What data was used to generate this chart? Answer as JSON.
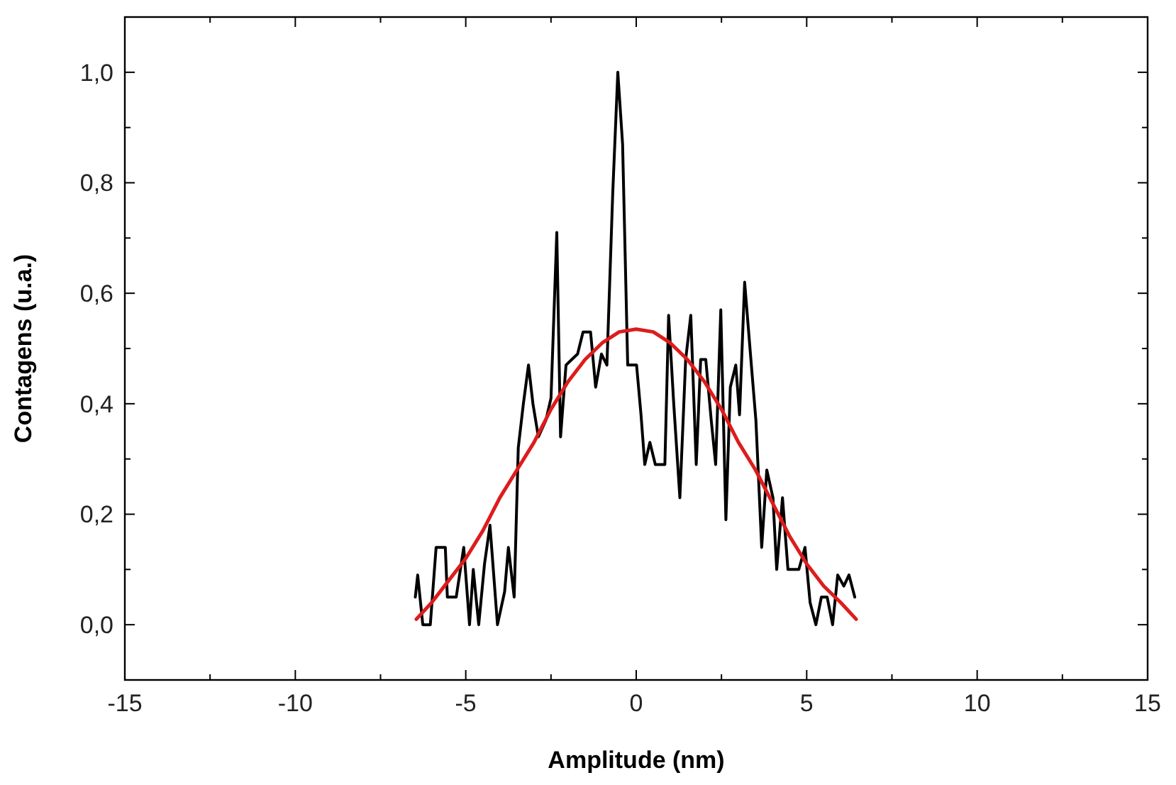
{
  "chart_data": {
    "type": "line",
    "xlabel": "Amplitude (nm)",
    "ylabel": "Contagens (u.a.)",
    "xlim": [
      -15,
      15
    ],
    "ylim": [
      -0.1,
      1.1
    ],
    "xticks": [
      -15,
      {
        "value": -12.5,
        "label": null
      },
      -10,
      {
        "value": -7.5,
        "label": null
      },
      -5,
      {
        "value": -2.5,
        "label": null
      },
      0,
      {
        "value": 2.5,
        "label": null
      },
      5,
      {
        "value": 7.5,
        "label": null
      },
      10,
      {
        "value": 12.5,
        "label": null
      },
      15
    ],
    "yticks": [
      {
        "value": -0.1,
        "label": null
      },
      {
        "value": 0,
        "label": "0,0"
      },
      {
        "value": 0.1,
        "label": null
      },
      {
        "value": 0.2,
        "label": "0,2"
      },
      {
        "value": 0.3,
        "label": null
      },
      {
        "value": 0.4,
        "label": "0,4"
      },
      {
        "value": 0.5,
        "label": null
      },
      {
        "value": 0.6,
        "label": "0,6"
      },
      {
        "value": 0.7,
        "label": null
      },
      {
        "value": 0.8,
        "label": "0,8"
      },
      {
        "value": 0.9,
        "label": null
      },
      {
        "value": 1,
        "label": "1,0"
      },
      {
        "value": 1.1,
        "label": null
      }
    ],
    "grid": false,
    "line_style": "solid",
    "series": [
      {
        "color": "#000000",
        "x": [
          -6.48,
          -6.41,
          -6.26,
          -6.04,
          -5.87,
          -5.6,
          -5.54,
          -5.28,
          -5.06,
          -4.89,
          -4.78,
          -4.62,
          -4.45,
          -4.29,
          -4.07,
          -3.86,
          -3.75,
          -3.58,
          -3.46,
          -3.31,
          -3.16,
          -3.03,
          -2.87,
          -2.65,
          -2.5,
          -2.33,
          -2.22,
          -2.06,
          -1.89,
          -1.72,
          -1.56,
          -1.34,
          -1.19,
          -1.02,
          -0.86,
          -0.69,
          -0.54,
          -0.4,
          -0.25,
          0.01,
          0.14,
          0.25,
          0.4,
          0.56,
          0.84,
          0.95,
          1.1,
          1.28,
          1.45,
          1.6,
          1.76,
          1.89,
          2.04,
          2.2,
          2.33,
          2.48,
          2.63,
          2.76,
          2.92,
          3.03,
          3.18,
          3.35,
          3.51,
          3.68,
          3.83,
          4.01,
          4.12,
          4.29,
          4.45,
          4.62,
          4.77,
          4.95,
          5.1,
          5.27,
          5.43,
          5.6,
          5.76,
          5.91,
          6.09,
          6.24,
          6.41
        ],
        "values": [
          0.05,
          0.09,
          0,
          0,
          0.14,
          0.14,
          0.05,
          0.05,
          0.14,
          0,
          0.1,
          0,
          0.11,
          0.18,
          0,
          0.06,
          0.14,
          0.05,
          0.32,
          0.4,
          0.47,
          0.4,
          0.34,
          0.37,
          0.41,
          0.71,
          0.34,
          0.47,
          0.48,
          0.49,
          0.53,
          0.53,
          0.43,
          0.49,
          0.47,
          0.78,
          1,
          0.87,
          0.47,
          0.47,
          0.38,
          0.29,
          0.33,
          0.29,
          0.29,
          0.56,
          0.4,
          0.23,
          0.48,
          0.56,
          0.29,
          0.48,
          0.48,
          0.37,
          0.29,
          0.57,
          0.19,
          0.43,
          0.47,
          0.38,
          0.62,
          0.49,
          0.37,
          0.14,
          0.28,
          0.23,
          0.1,
          0.23,
          0.1,
          0.1,
          0.1,
          0.14,
          0.04,
          0,
          0.05,
          0.05,
          0,
          0.09,
          0.07,
          0.09,
          0.05
        ]
      },
      {
        "color": "#dd1c1c",
        "x": [
          -6.45,
          -6,
          -5.5,
          -5,
          -4.5,
          -4,
          -3.5,
          -3,
          -2.5,
          -2,
          -1.5,
          -1,
          -0.5,
          0,
          0.5,
          1,
          1.5,
          2,
          2.5,
          3,
          3.5,
          4,
          4.5,
          5,
          5.5,
          6,
          6.45
        ],
        "values": [
          0.01,
          0.04,
          0.08,
          0.12,
          0.17,
          0.23,
          0.28,
          0.33,
          0.39,
          0.44,
          0.48,
          0.51,
          0.53,
          0.535,
          0.53,
          0.51,
          0.48,
          0.44,
          0.39,
          0.33,
          0.28,
          0.22,
          0.16,
          0.11,
          0.07,
          0.04,
          0.01
        ]
      }
    ]
  }
}
